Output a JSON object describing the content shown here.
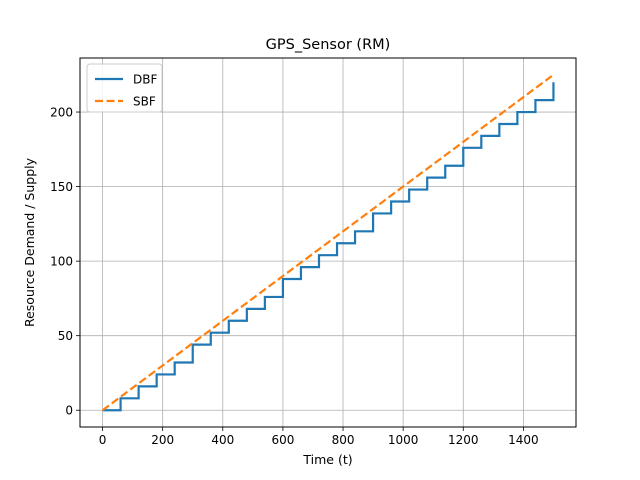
{
  "chart_data": {
    "type": "line",
    "title": "GPS_Sensor (RM)",
    "xlabel": "Time (t)",
    "ylabel": "Resource Demand / Supply",
    "xlim": [
      -75,
      1575
    ],
    "ylim": [
      -11.25,
      236.25
    ],
    "x_ticks": [
      0,
      200,
      400,
      600,
      800,
      1000,
      1200,
      1400
    ],
    "y_ticks": [
      0,
      50,
      100,
      150,
      200
    ],
    "grid": true,
    "legend_position": "upper-left",
    "series": [
      {
        "name": "DBF",
        "style": "step",
        "color": "#1f77b4",
        "x": [
          0,
          60,
          60,
          120,
          120,
          180,
          180,
          240,
          240,
          300,
          300,
          360,
          360,
          420,
          420,
          480,
          480,
          540,
          540,
          600,
          600,
          660,
          660,
          720,
          720,
          780,
          780,
          840,
          840,
          900,
          900,
          960,
          960,
          1020,
          1020,
          1080,
          1080,
          1140,
          1140,
          1200,
          1200,
          1260,
          1260,
          1320,
          1320,
          1380,
          1380,
          1440,
          1440,
          1500,
          1500
        ],
        "y": [
          0,
          0,
          8,
          8,
          16,
          16,
          24,
          24,
          32,
          32,
          44,
          44,
          52,
          52,
          60,
          60,
          68,
          68,
          76,
          76,
          88,
          88,
          96,
          96,
          104,
          104,
          112,
          112,
          120,
          120,
          132,
          132,
          140,
          140,
          148,
          148,
          156,
          156,
          164,
          164,
          176,
          176,
          184,
          184,
          192,
          192,
          200,
          200,
          208,
          208,
          220
        ]
      },
      {
        "name": "SBF",
        "style": "dashed",
        "color": "#ff7f0e",
        "x": [
          0,
          1500
        ],
        "y": [
          0,
          225
        ]
      }
    ]
  }
}
